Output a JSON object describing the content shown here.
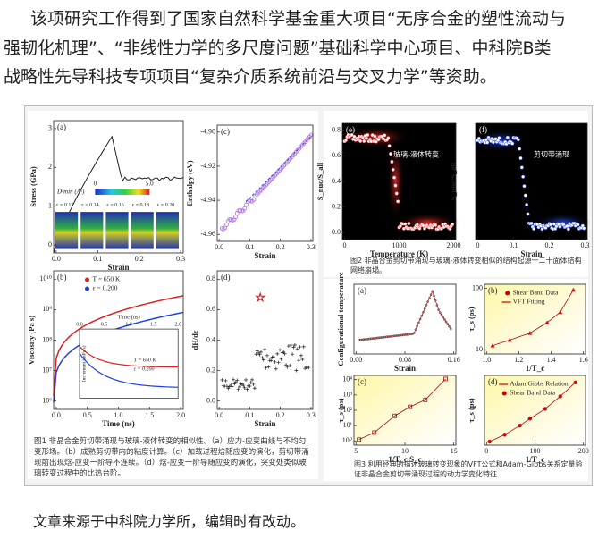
{
  "article": {
    "paragraph_lines": [
      "该项研究工作得到了国家自然科学基金重大项目“无序合金的塑性流动与",
      "强韧化机理”、“非线性力学的多尺度问题”基础科学中心项目、中科院B类",
      "战略性先导科技专项项目“复杂介质系统前沿与交叉力学”等资助。"
    ],
    "source": "文章来源于中科院力学所，编辑时有改动。"
  },
  "figure1": {
    "caption": "图1 非晶合金剪切带涌现与玻璃-液体转变的相似性。（a）应力-应变曲线与不均匀变形场。（b）成熟剪切带内的粘度计算。（c）加载过程焓随应变的演化，剪切带涌现前出现焓-应变一阶导不连续。（d）焓-应变一阶导随应变的演化，突变处类似玻璃转变过程中的比热台阶。",
    "panel_a": {
      "label": "(a)",
      "xlabel": "Strain",
      "ylabel": "Stress (GPa)",
      "xticks": [
        "0.0",
        "0.1",
        "0.2",
        "0.3"
      ],
      "yticks": [
        "0",
        "1",
        "2",
        "3"
      ],
      "colorbar_label": "D²min (Å²)",
      "colorbar_ticks": [
        "0",
        "5.0"
      ],
      "snapshots": [
        "ε = 0.12",
        "ε = 0.14",
        "ε = 0.16",
        "ε = 0.18",
        "ε = 0.20"
      ]
    },
    "panel_c": {
      "label": "(c)",
      "xlabel": "Strain",
      "ylabel": "Enthalpy (eV)",
      "xticks": [
        "0.0",
        "0.1",
        "0.2",
        "0.3"
      ],
      "yticks": [
        "-4.96",
        "-4.94",
        "-4.92",
        "-4.90"
      ]
    },
    "panel_b": {
      "label": "(b)",
      "xlabel": "Time (ns)",
      "ylabel": "Viscosity (Pa s)",
      "xticks": [
        "0.0",
        "0.5",
        "1.0",
        "1.5",
        "2.0"
      ],
      "yticks": [
        "10⁶",
        "10⁷",
        "10⁸",
        "10⁹",
        "10¹⁰"
      ],
      "legend": [
        "T = 650 K",
        "ε = 0.200"
      ],
      "inset": {
        "xlabel": "Time (ns)",
        "ylabel": "Increment (mPa s)",
        "xticks": [
          "0.0",
          "0.5",
          "1.0",
          "1.5",
          "2.0"
        ],
        "legend": [
          "T = 650 K",
          "ε = 0.200"
        ]
      }
    },
    "panel_d": {
      "label": "(d)",
      "xlabel": "Strain",
      "ylabel": "dH/dε",
      "xticks": [
        "0.0",
        "0.1",
        "0.2",
        "0.3"
      ],
      "yticks": [
        "0.0",
        "0.2",
        "0.4",
        "0.6",
        "0.8"
      ]
    }
  },
  "figure2": {
    "caption": "图2 非晶合金剪切带涌现与玻璃-液体转变相似的结构起源一二十面体结构网络崩塌。",
    "panel_e": {
      "label": "(e)",
      "xlabel": "Temperature (K)",
      "ylabel": "S_nuc/S_all",
      "xticks": [
        "0",
        "1000",
        "2000"
      ],
      "yticks": [
        "0.0",
        "0.2",
        "0.4",
        "0.6",
        "0.8"
      ],
      "annotation": "玻璃-液体转变"
    },
    "panel_f": {
      "label": "(f)",
      "xlabel": "Strain",
      "ylabel": "S_nuc/S_all",
      "xticks": [
        "0",
        "0.1",
        "0.2",
        "0.3"
      ],
      "annotation": "剪切带涌现"
    }
  },
  "figure3": {
    "caption": "图3 利用经典的描述玻璃转变现象的VFT公式和Adam-Gibbs关系定量验证非晶合金剪切带涌现过程的动力学变化特征",
    "panel_a": {
      "label": "(a)",
      "xlabel": "Strain",
      "ylabel": "Configurational temperature",
      "xticks": [
        "0.00",
        "0.08",
        "0.16"
      ]
    },
    "panel_b": {
      "label": "(b)",
      "xlabel": "1/T_c",
      "ylabel": "τ_s (ps)",
      "xticks": [
        "1.0",
        "1.2",
        "1.4",
        "1.6"
      ],
      "yticks": [
        "10",
        "100"
      ],
      "legend": [
        "Shear Band Data",
        "VFT Fitting"
      ]
    },
    "panel_c": {
      "label": "(c)",
      "xlabel": "1/T_c S_c",
      "ylabel": "τ_s (ps)",
      "xticks": [
        "5",
        "10",
        "15"
      ],
      "yticks": [
        "10⁰",
        "10¹",
        "10²",
        "10³",
        "10⁴"
      ]
    },
    "panel_d": {
      "label": "(d)",
      "xlabel": "1/T_c",
      "ylabel": "τ_s (ps)",
      "xticks": [
        "0",
        "100",
        "200"
      ],
      "legend": [
        "Adam Gibbs Relation",
        "Shear Band Data"
      ]
    }
  }
}
